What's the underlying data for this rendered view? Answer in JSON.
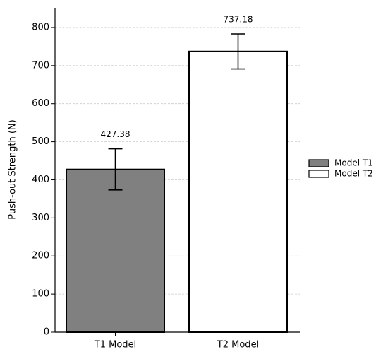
{
  "chart_data": {
    "type": "bar",
    "ylabel": "Push-out Strength (N)",
    "categories": [
      "T1 Model",
      "T2 Model"
    ],
    "series": [
      {
        "name": "Model T1",
        "color": "#808080"
      },
      {
        "name": "Model T2",
        "color": "#ffffff"
      }
    ],
    "values": [
      427.38,
      737.18
    ],
    "errors": [
      54,
      46
    ],
    "ylim": [
      0,
      850
    ],
    "yticks": [
      0,
      100,
      200,
      300,
      400,
      500,
      600,
      700,
      800
    ],
    "grid": true,
    "legend": "right"
  }
}
